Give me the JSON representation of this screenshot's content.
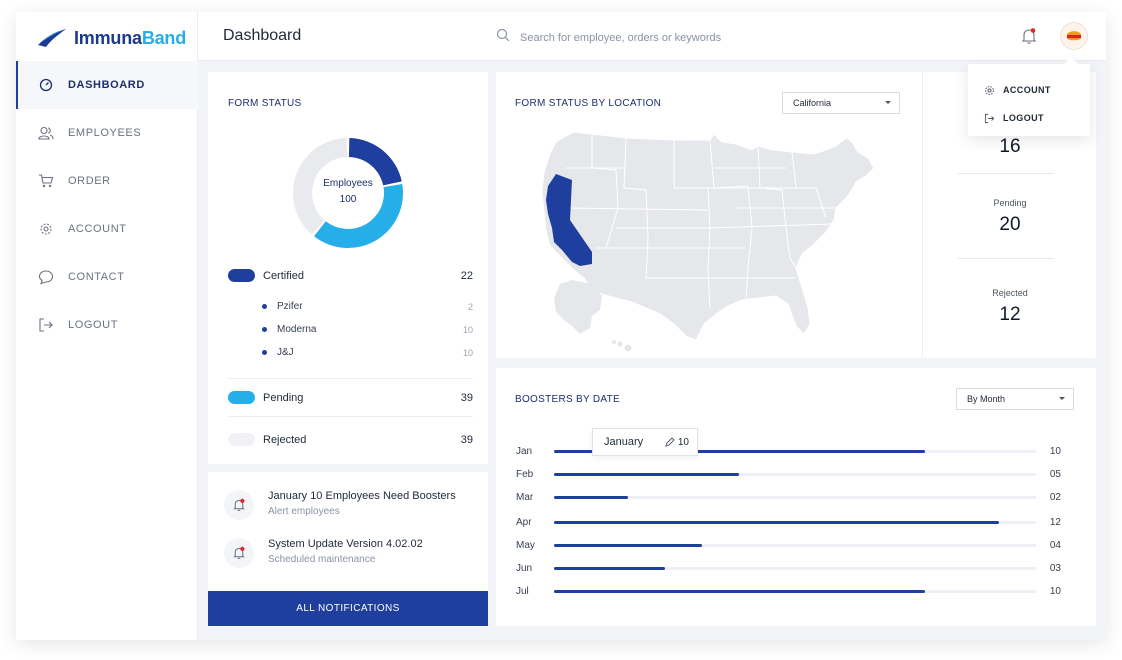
{
  "app": {
    "name_part1": "Immuna",
    "name_part2": "Band"
  },
  "colors": {
    "primary": "#1f3f9e",
    "accent": "#25aee8",
    "rejected": "#e8eaee"
  },
  "sidebar": {
    "items": [
      {
        "label": "DASHBOARD",
        "icon": "gauge-icon",
        "active": true
      },
      {
        "label": "EMPLOYEES",
        "icon": "users-icon"
      },
      {
        "label": "ORDER",
        "icon": "cart-icon"
      },
      {
        "label": "ACCOUNT",
        "icon": "gear-icon"
      },
      {
        "label": "CONTACT",
        "icon": "chat-icon"
      },
      {
        "label": "LOGOUT",
        "icon": "logout-icon"
      }
    ]
  },
  "header": {
    "title": "Dashboard",
    "search_placeholder": "Search for employee, orders or keywords"
  },
  "account_menu": {
    "items": [
      {
        "label": "ACCOUNT",
        "icon": "gear-icon"
      },
      {
        "label": "LOGOUT",
        "icon": "logout-icon"
      }
    ]
  },
  "form_status": {
    "title": "FORM STATUS",
    "donut": {
      "center_label": "Employees",
      "center_value": "100"
    },
    "certified": {
      "label": "Certified",
      "value": "22"
    },
    "vaccines": [
      {
        "name": "Pzifer",
        "value": "2"
      },
      {
        "name": "Moderna",
        "value": "10"
      },
      {
        "name": "J&J",
        "value": "10"
      }
    ],
    "pending": {
      "label": "Pending",
      "value": "39"
    },
    "rejected": {
      "label": "Rejected",
      "value": "39"
    }
  },
  "chart_data": [
    {
      "type": "pie",
      "title": "",
      "categories": [
        "Certified",
        "Pending",
        "Rejected"
      ],
      "values": [
        22,
        39,
        39
      ]
    },
    {
      "type": "bar",
      "title": "BOOSTERS BY DATE",
      "categories": [
        "Jan",
        "Feb",
        "Mar",
        "Apr",
        "May",
        "Jun",
        "Jul"
      ],
      "values": [
        10,
        5,
        2,
        12,
        4,
        3,
        10
      ],
      "value_labels": [
        "10",
        "05",
        "02",
        "12",
        "04",
        "03",
        "10"
      ],
      "xlim": [
        0,
        13
      ]
    }
  ],
  "notifications": {
    "items": [
      {
        "title": "January 10 Employees Need Boosters",
        "subtitle": "Alert employees",
        "icon": "bell-icon"
      },
      {
        "title": "System Update Version 4.02.02",
        "subtitle": "Scheduled maintenance",
        "icon": "bell-icon"
      }
    ],
    "button_label": "ALL NOTIFICATIONS"
  },
  "location": {
    "title": "FORM STATUS BY LOCATION",
    "selected": "California",
    "stats": [
      {
        "label": "",
        "value": "16"
      },
      {
        "label": "Pending",
        "value": "20"
      },
      {
        "label": "Rejected",
        "value": "12"
      }
    ]
  },
  "boosters": {
    "title": "BOOSTERS BY DATE",
    "filter": "By Month",
    "tooltip": {
      "label": "January",
      "value": "10"
    }
  }
}
